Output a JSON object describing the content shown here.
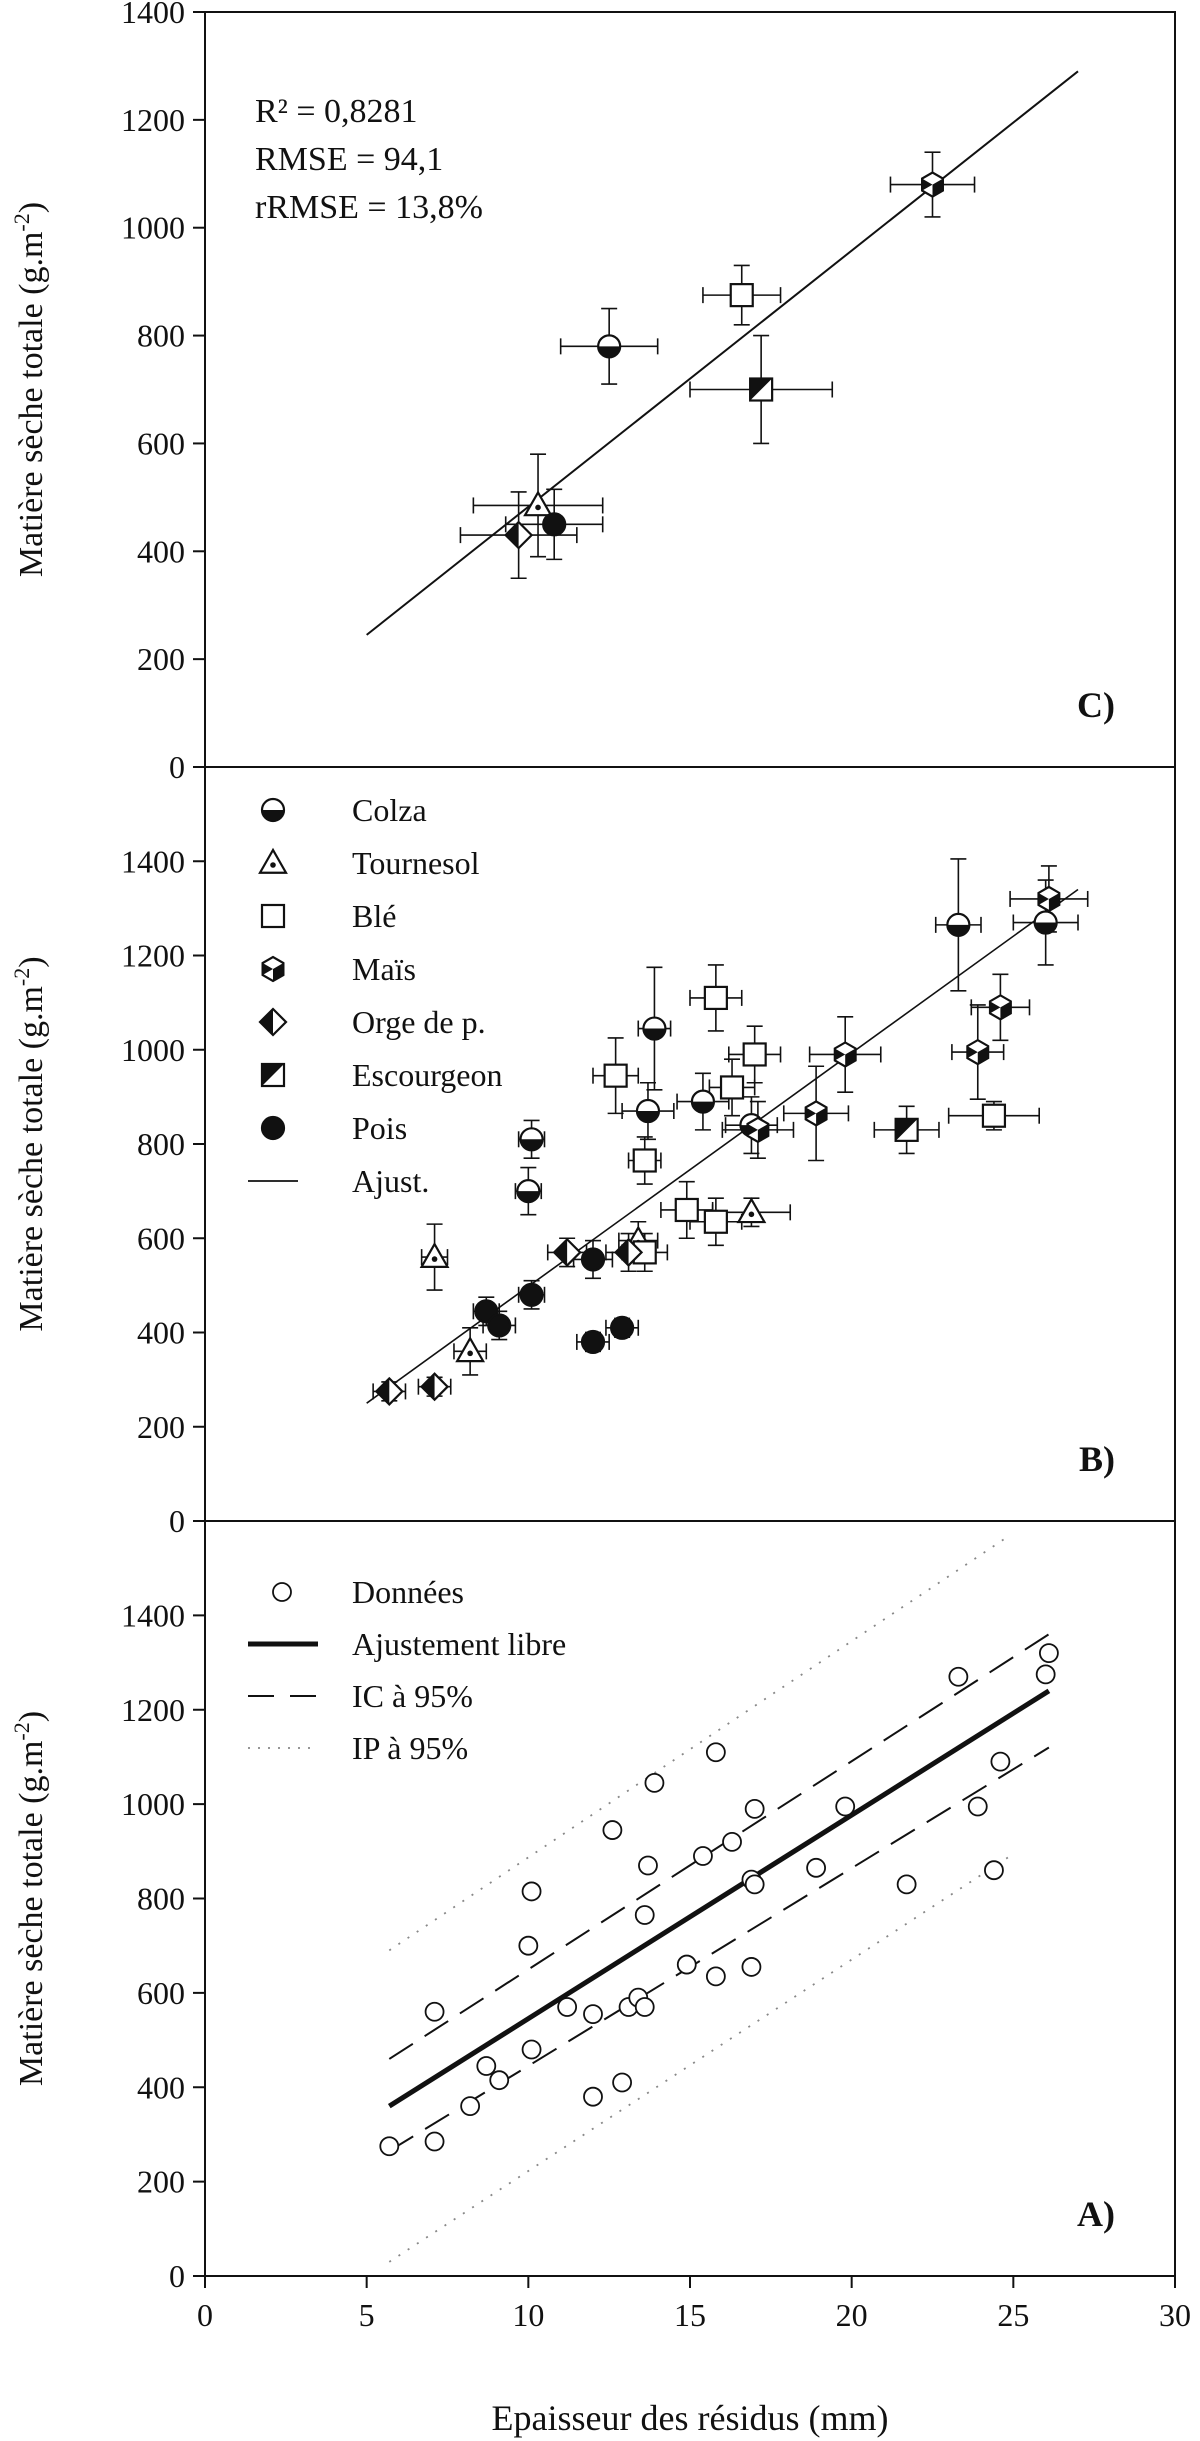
{
  "chart_data": [
    {
      "panel": "C",
      "type": "scatter",
      "panel_label": "C)",
      "ylabel_main": "Matière sèche totale (g.m",
      "ylabel_sup": "-2",
      "ylabel_end": ")",
      "ylim": [
        0,
        1400
      ],
      "yticks": [
        "0",
        "200",
        "400",
        "600",
        "800",
        "1000",
        "1200",
        "1400"
      ],
      "xlim": [
        0,
        30
      ],
      "stats": [
        "R² = 0,8281",
        "RMSE = 94,1",
        "rRMSE = 13,8%"
      ],
      "fit_line": {
        "x": [
          5,
          27
        ],
        "y": [
          245,
          1290
        ]
      },
      "points": [
        {
          "crop": "Colza",
          "x": 12.5,
          "y": 780,
          "xerr": 1.5,
          "yerr": 70
        },
        {
          "crop": "Tournesol",
          "x": 10.3,
          "y": 485,
          "xerr": 2.0,
          "yerr": 95
        },
        {
          "crop": "Blé",
          "x": 16.6,
          "y": 875,
          "xerr": 1.2,
          "yerr": 55
        },
        {
          "crop": "Maïs",
          "x": 22.5,
          "y": 1080,
          "xerr": 1.3,
          "yerr": 60
        },
        {
          "crop": "Orge de p.",
          "x": 9.7,
          "y": 430,
          "xerr": 1.8,
          "yerr": 80
        },
        {
          "crop": "Escourgeon",
          "x": 17.2,
          "y": 700,
          "xerr": 2.2,
          "yerr": 100
        },
        {
          "crop": "Pois",
          "x": 10.8,
          "y": 450,
          "xerr": 1.5,
          "yerr": 65
        }
      ]
    },
    {
      "panel": "B",
      "type": "scatter",
      "panel_label": "B)",
      "ylabel_main": "Matière sèche totale (g.m",
      "ylabel_sup": "-2",
      "ylabel_end": ")",
      "ylim": [
        0,
        1600
      ],
      "yticks": [
        "0",
        "200",
        "400",
        "600",
        "800",
        "1000",
        "1200",
        "1400"
      ],
      "xlim": [
        0,
        30
      ],
      "fit_line": {
        "x": [
          5,
          27
        ],
        "y": [
          250,
          1340
        ]
      },
      "legend": [
        {
          "label": "Colza",
          "marker": "colza"
        },
        {
          "label": "Tournesol",
          "marker": "tournesol"
        },
        {
          "label": "Blé",
          "marker": "ble"
        },
        {
          "label": "Maïs",
          "marker": "mais"
        },
        {
          "label": "Orge de p.",
          "marker": "orge"
        },
        {
          "label": "Escourgeon",
          "marker": "escourgeon"
        },
        {
          "label": "Pois",
          "marker": "pois"
        },
        {
          "label": "Ajust.",
          "marker": "line"
        }
      ],
      "series": [
        {
          "name": "Colza",
          "marker": "colza",
          "points": [
            {
              "x": 10.1,
              "y": 810,
              "xerr": 0.4,
              "yerr": 40
            },
            {
              "x": 10.0,
              "y": 700,
              "xerr": 0.4,
              "yerr": 50
            },
            {
              "x": 13.9,
              "y": 1045,
              "xerr": 0.5,
              "yerr": 130
            },
            {
              "x": 13.7,
              "y": 870,
              "xerr": 0.8,
              "yerr": 60
            },
            {
              "x": 15.4,
              "y": 890,
              "xerr": 0.8,
              "yerr": 60
            },
            {
              "x": 16.9,
              "y": 840,
              "xerr": 0.8,
              "yerr": 60
            },
            {
              "x": 23.3,
              "y": 1265,
              "xerr": 0.7,
              "yerr": 140
            },
            {
              "x": 26.0,
              "y": 1270,
              "xerr": 1.0,
              "yerr": 90
            }
          ]
        },
        {
          "name": "Tournesol",
          "marker": "tournesol",
          "points": [
            {
              "x": 7.1,
              "y": 560,
              "xerr": 0.4,
              "yerr": 70
            },
            {
              "x": 8.2,
              "y": 360,
              "xerr": 0.5,
              "yerr": 50
            },
            {
              "x": 16.9,
              "y": 655,
              "xerr": 1.2,
              "yerr": 30
            },
            {
              "x": 13.4,
              "y": 595,
              "xerr": 0.6,
              "yerr": 40
            }
          ]
        },
        {
          "name": "Blé",
          "marker": "ble",
          "points": [
            {
              "x": 12.7,
              "y": 945,
              "xerr": 0.7,
              "yerr": 80
            },
            {
              "x": 13.6,
              "y": 765,
              "xerr": 0.5,
              "yerr": 50
            },
            {
              "x": 15.8,
              "y": 1110,
              "xerr": 0.8,
              "yerr": 70
            },
            {
              "x": 16.3,
              "y": 920,
              "xerr": 0.7,
              "yerr": 60
            },
            {
              "x": 17.0,
              "y": 990,
              "xerr": 0.8,
              "yerr": 60
            },
            {
              "x": 14.9,
              "y": 660,
              "xerr": 0.8,
              "yerr": 60
            },
            {
              "x": 15.8,
              "y": 635,
              "xerr": 0.8,
              "yerr": 50
            },
            {
              "x": 13.6,
              "y": 570,
              "xerr": 0.7,
              "yerr": 40
            },
            {
              "x": 24.4,
              "y": 860,
              "xerr": 1.4,
              "yerr": 30
            }
          ]
        },
        {
          "name": "Maïs",
          "marker": "mais",
          "points": [
            {
              "x": 18.9,
              "y": 865,
              "xerr": 1.0,
              "yerr": 100
            },
            {
              "x": 19.8,
              "y": 990,
              "xerr": 1.1,
              "yerr": 80
            },
            {
              "x": 23.9,
              "y": 995,
              "xerr": 0.8,
              "yerr": 100
            },
            {
              "x": 24.6,
              "y": 1090,
              "xerr": 0.9,
              "yerr": 70
            },
            {
              "x": 26.1,
              "y": 1320,
              "xerr": 1.2,
              "yerr": 70
            },
            {
              "x": 17.1,
              "y": 830,
              "xerr": 1.1,
              "yerr": 60
            }
          ]
        },
        {
          "name": "Orge de p.",
          "marker": "orge",
          "points": [
            {
              "x": 5.7,
              "y": 275,
              "xerr": 0.5,
              "yerr": 20
            },
            {
              "x": 7.1,
              "y": 285,
              "xerr": 0.5,
              "yerr": 20
            },
            {
              "x": 11.2,
              "y": 570,
              "xerr": 0.6,
              "yerr": 30
            },
            {
              "x": 13.1,
              "y": 570,
              "xerr": 0.7,
              "yerr": 40
            }
          ]
        },
        {
          "name": "Escourgeon",
          "marker": "escourgeon",
          "points": [
            {
              "x": 21.7,
              "y": 830,
              "xerr": 1.0,
              "yerr": 50
            }
          ]
        },
        {
          "name": "Pois",
          "marker": "pois",
          "points": [
            {
              "x": 8.7,
              "y": 445,
              "xerr": 0.4,
              "yerr": 30
            },
            {
              "x": 9.1,
              "y": 415,
              "xerr": 0.5,
              "yerr": 30
            },
            {
              "x": 10.1,
              "y": 480,
              "xerr": 0.4,
              "yerr": 30
            },
            {
              "x": 12.0,
              "y": 555,
              "xerr": 0.6,
              "yerr": 40
            },
            {
              "x": 12.0,
              "y": 380,
              "xerr": 0.5,
              "yerr": 20
            },
            {
              "x": 12.9,
              "y": 410,
              "xerr": 0.5,
              "yerr": 20
            }
          ]
        }
      ]
    },
    {
      "panel": "A",
      "type": "scatter",
      "panel_label": "A)",
      "ylabel_main": "Matière sèche totale (g.m",
      "ylabel_sup": "-2",
      "ylabel_end": ")",
      "xlabel": "Epaisseur des résidus (mm)",
      "ylim": [
        0,
        1600
      ],
      "yticks": [
        "0",
        "200",
        "400",
        "600",
        "800",
        "1000",
        "1200",
        "1400"
      ],
      "xlim": [
        0,
        30
      ],
      "xticks": [
        "0",
        "5",
        "10",
        "15",
        "20",
        "25",
        "30"
      ],
      "legend": [
        {
          "label": "Données",
          "style": "circle"
        },
        {
          "label": "Ajustement libre",
          "style": "solid"
        },
        {
          "label": "IC à 95%",
          "style": "dash"
        },
        {
          "label": "IP à 95%",
          "style": "dot"
        }
      ],
      "fit": {
        "x": [
          5.7,
          26.1
        ],
        "y": [
          360,
          1240
        ]
      },
      "ci_upper": {
        "x": [
          5.7,
          26.1
        ],
        "y": [
          460,
          1360
        ]
      },
      "ci_lower": {
        "x": [
          5.7,
          26.1
        ],
        "y": [
          265,
          1120
        ]
      },
      "pi_upper": {
        "x": [
          5.7,
          24.9
        ],
        "y": [
          690,
          1570
        ]
      },
      "pi_lower": {
        "x": [
          5.7,
          24.9
        ],
        "y": [
          30,
          890
        ]
      },
      "points": [
        {
          "x": 5.7,
          "y": 275
        },
        {
          "x": 7.1,
          "y": 285
        },
        {
          "x": 7.1,
          "y": 560
        },
        {
          "x": 8.2,
          "y": 360
        },
        {
          "x": 8.7,
          "y": 445
        },
        {
          "x": 9.1,
          "y": 415
        },
        {
          "x": 10.0,
          "y": 700
        },
        {
          "x": 10.1,
          "y": 815
        },
        {
          "x": 10.1,
          "y": 480
        },
        {
          "x": 11.2,
          "y": 570
        },
        {
          "x": 12.0,
          "y": 555
        },
        {
          "x": 12.0,
          "y": 380
        },
        {
          "x": 12.6,
          "y": 945
        },
        {
          "x": 12.9,
          "y": 410
        },
        {
          "x": 13.1,
          "y": 570
        },
        {
          "x": 13.4,
          "y": 590
        },
        {
          "x": 13.6,
          "y": 570
        },
        {
          "x": 13.6,
          "y": 765
        },
        {
          "x": 13.7,
          "y": 870
        },
        {
          "x": 13.9,
          "y": 1045
        },
        {
          "x": 14.9,
          "y": 660
        },
        {
          "x": 15.4,
          "y": 890
        },
        {
          "x": 15.8,
          "y": 1110
        },
        {
          "x": 15.8,
          "y": 635
        },
        {
          "x": 16.3,
          "y": 920
        },
        {
          "x": 16.9,
          "y": 840
        },
        {
          "x": 16.9,
          "y": 655
        },
        {
          "x": 17.0,
          "y": 990
        },
        {
          "x": 17.0,
          "y": 830
        },
        {
          "x": 18.9,
          "y": 865
        },
        {
          "x": 19.8,
          "y": 995
        },
        {
          "x": 21.7,
          "y": 830
        },
        {
          "x": 23.3,
          "y": 1270
        },
        {
          "x": 23.9,
          "y": 995
        },
        {
          "x": 24.4,
          "y": 860
        },
        {
          "x": 24.6,
          "y": 1090
        },
        {
          "x": 26.0,
          "y": 1275
        },
        {
          "x": 26.1,
          "y": 1320
        }
      ]
    }
  ]
}
